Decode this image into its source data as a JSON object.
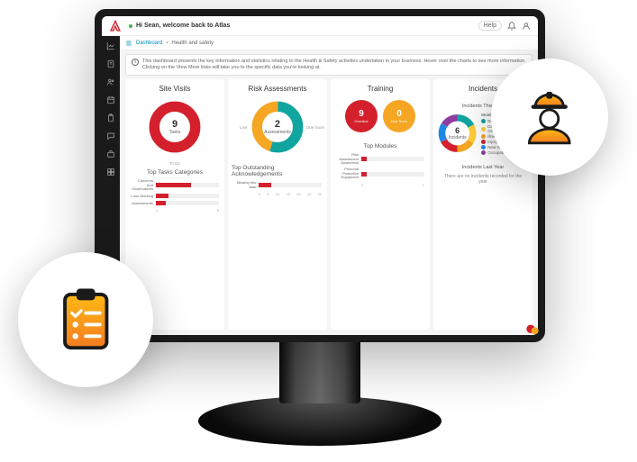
{
  "header": {
    "welcome": "Hi Sean, welcome back to Atlas",
    "help": "Help"
  },
  "breadcrumb": {
    "root": "Dashboard",
    "current": "Health and safety"
  },
  "info": "This dashboard presents the key information and statistics relating to the Health & Safety activities undertaken in your business. Hover over the charts to see more information. Clicking on the View More links will take you to the specific data you're looking at.",
  "colors": {
    "red": "#d4202c",
    "orange": "#f5a623",
    "green": "#4caf50",
    "teal": "#11a5a0",
    "yellow": "#ffcf3c",
    "blue": "#1e88e5",
    "purple": "#8e3ca0",
    "link": "#008db9",
    "grad1": "#fdb913",
    "grad2": "#f47b20"
  },
  "siteVisits": {
    "title": "Site Visits",
    "value": "9",
    "label": "Tasks",
    "legend": "To Do",
    "sub": "Top Tasks Categories",
    "bars": [
      {
        "label": "Concerns And Observations",
        "pct": 55,
        "color": "#d4202c"
      },
      {
        "label": "Lone Working",
        "pct": 20,
        "color": "#d4202c"
      },
      {
        "label": "Assessments",
        "pct": 15,
        "color": "#d4202c"
      }
    ],
    "axis": [
      "0",
      "5"
    ]
  },
  "risk": {
    "title": "Risk Assessments",
    "value": "2",
    "label": "Assessments",
    "legL": "Live",
    "legR": "Due Soon",
    "seg1": {
      "color": "#11a5a0",
      "from": 0,
      "to": 55
    },
    "seg2": {
      "color": "#f5a623",
      "from": 55,
      "to": 100
    },
    "sub": "Top Outstanding Acknowledgements",
    "bars": [
      {
        "label": "Missing this task",
        "pct": 20,
        "color": "#d4202c"
      }
    ],
    "axis": [
      "0",
      "5",
      "10",
      "15",
      "20",
      "25",
      "30"
    ]
  },
  "training": {
    "title": "Training",
    "c1": {
      "n": "9",
      "l": "Overdue",
      "color": "#d4202c"
    },
    "c2": {
      "n": "0",
      "l": "Due Soon",
      "color": "#f5a623"
    },
    "sub": "Top Modules",
    "bars": [
      {
        "label": "Risk Assessment Awareness",
        "pct": 8,
        "color": "#d4202c"
      },
      {
        "label": "Personal Protective Equipment",
        "pct": 8,
        "color": "#d4202c"
      }
    ],
    "axis": [
      "0",
      "1"
    ]
  },
  "incidents": {
    "title": "Incidents",
    "sub1": "Incidents This Year",
    "value": "6",
    "label": "Incidents",
    "legendTitle": "Incident categories",
    "cats": [
      {
        "l": "Behavioural",
        "c": "#11a5a0"
      },
      {
        "l": "Dangerous Occurrence",
        "c": "#ffcf3c"
      },
      {
        "l": "Illness",
        "c": "#f5a623"
      },
      {
        "l": "Injury",
        "c": "#d4202c"
      },
      {
        "l": "Near Miss",
        "c": "#1e88e5"
      },
      {
        "l": "Occupational Disease",
        "c": "#8e3ca0"
      }
    ],
    "segs": [
      {
        "c": "#11a5a0",
        "f": 0,
        "t": 17
      },
      {
        "c": "#ffcf3c",
        "f": 17,
        "t": 34
      },
      {
        "c": "#f5a623",
        "f": 34,
        "t": 50
      },
      {
        "c": "#d4202c",
        "f": 50,
        "t": 67
      },
      {
        "c": "#1e88e5",
        "f": 67,
        "t": 84
      },
      {
        "c": "#8e3ca0",
        "f": 84,
        "t": 100
      }
    ],
    "sub2": "Incidents Last Year",
    "empty": "There are no incidents recorded for the year"
  }
}
